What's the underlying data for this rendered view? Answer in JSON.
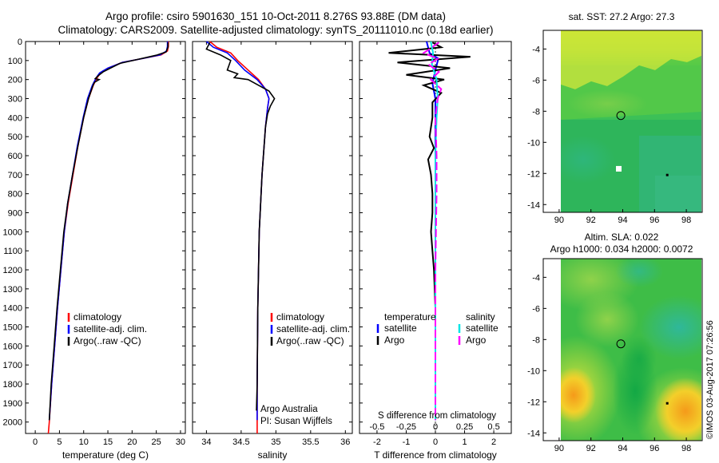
{
  "header": {
    "line1": "Argo profile: csiro 5901630_151 10-Oct-2011 8.276S 93.88E (DM data)",
    "line2": "Climatology: CARS2009. Satellite-adjusted climatology: synTS_20111010.nc (0.18d earlier)"
  },
  "stamp": "©IMOS 03-Aug-2017 07:26:56",
  "colors": {
    "clim": "#ff0000",
    "sat": "#0000ff",
    "argo": "#000000",
    "sal_sat": "#00e5e5",
    "sal_argo": "#ff00ff"
  },
  "chart_data": [
    {
      "type": "line",
      "name": "temperature-profile",
      "xlabel": "temperature (deg C)",
      "ylabel": "",
      "xlim": [
        -2,
        31
      ],
      "ylim": [
        2060,
        0
      ],
      "xticks": [
        0,
        5,
        10,
        15,
        20,
        25,
        30
      ],
      "yticks": [
        0,
        100,
        200,
        300,
        400,
        500,
        600,
        700,
        800,
        900,
        1000,
        1100,
        1200,
        1300,
        1400,
        1500,
        1600,
        1700,
        1800,
        1900,
        2000
      ],
      "legend": [
        "climatology",
        "satellite-adj. clim.",
        "Argo(..raw -QC)"
      ],
      "series": [
        {
          "name": "climatology",
          "points": [
            [
              27.5,
              0
            ],
            [
              27.5,
              25
            ],
            [
              27.3,
              50
            ],
            [
              26,
              70
            ],
            [
              22,
              90
            ],
            [
              18,
              110
            ],
            [
              15,
              140
            ],
            [
              13.5,
              165
            ],
            [
              12.8,
              190
            ],
            [
              12,
              230
            ],
            [
              11,
              300
            ],
            [
              10,
              400
            ],
            [
              8.8,
              550
            ],
            [
              7.8,
              700
            ],
            [
              6.8,
              850
            ],
            [
              6,
              1000
            ],
            [
              5.3,
              1200
            ],
            [
              4.6,
              1400
            ],
            [
              4,
              1600
            ],
            [
              3.4,
              1800
            ],
            [
              2.9,
              2000
            ],
            [
              2.7,
              2060
            ]
          ]
        },
        {
          "name": "satellite",
          "points": [
            [
              27.3,
              0
            ],
            [
              27.3,
              25
            ],
            [
              27.1,
              50
            ],
            [
              25.8,
              70
            ],
            [
              22,
              90
            ],
            [
              18,
              110
            ],
            [
              15,
              140
            ],
            [
              13.3,
              165
            ],
            [
              12.6,
              190
            ],
            [
              11.8,
              230
            ],
            [
              10.8,
              300
            ],
            [
              9.9,
              400
            ],
            [
              8.7,
              550
            ],
            [
              7.7,
              700
            ],
            [
              6.7,
              850
            ],
            [
              6,
              1000
            ],
            [
              5.3,
              1200
            ],
            [
              4.6,
              1400
            ],
            [
              4,
              1600
            ],
            [
              3.4,
              1800
            ],
            [
              2.9,
              1990
            ]
          ]
        },
        {
          "name": "argo",
          "points": [
            [
              27.4,
              5
            ],
            [
              27.4,
              30
            ],
            [
              27,
              55
            ],
            [
              25,
              72
            ],
            [
              21,
              95
            ],
            [
              17.5,
              115
            ],
            [
              15.5,
              140
            ],
            [
              14,
              160
            ],
            [
              13,
              180
            ],
            [
              12.4,
              195
            ],
            [
              13.2,
              200
            ],
            [
              12.2,
              215
            ],
            [
              11.8,
              240
            ],
            [
              11,
              300
            ],
            [
              10,
              400
            ],
            [
              8.8,
              550
            ],
            [
              7.7,
              700
            ],
            [
              6.7,
              850
            ],
            [
              5.9,
              1000
            ],
            [
              5.2,
              1200
            ],
            [
              4.5,
              1400
            ],
            [
              3.9,
              1600
            ],
            [
              3.3,
              1800
            ],
            [
              2.9,
              1990
            ]
          ]
        }
      ]
    },
    {
      "type": "line",
      "name": "salinity-profile",
      "xlabel": "salinity",
      "xlim": [
        33.8,
        36.1
      ],
      "ylim": [
        2060,
        0
      ],
      "xticks": [
        34,
        34.5,
        35,
        35.5,
        36
      ],
      "legend": [
        "climatology",
        "satellite-adj. clim.",
        "Argo(..raw -QC)"
      ],
      "annotation": [
        "Argo Australia",
        "PI: Susan Wijffels"
      ],
      "series": [
        {
          "name": "climatology",
          "points": [
            [
              34.05,
              0
            ],
            [
              34.15,
              30
            ],
            [
              34.35,
              60
            ],
            [
              34.45,
              100
            ],
            [
              34.6,
              150
            ],
            [
              34.75,
              200
            ],
            [
              34.85,
              250
            ],
            [
              34.9,
              300
            ],
            [
              34.88,
              350
            ],
            [
              34.85,
              450
            ],
            [
              34.8,
              700
            ],
            [
              34.76,
              1000
            ],
            [
              34.74,
              1400
            ],
            [
              34.73,
              1800
            ],
            [
              34.73,
              2060
            ]
          ]
        },
        {
          "name": "satellite",
          "points": [
            [
              34.0,
              0
            ],
            [
              34.1,
              30
            ],
            [
              34.3,
              60
            ],
            [
              34.42,
              100
            ],
            [
              34.55,
              150
            ],
            [
              34.73,
              200
            ],
            [
              34.85,
              250
            ],
            [
              34.9,
              300
            ],
            [
              34.88,
              350
            ],
            [
              34.85,
              450
            ],
            [
              34.8,
              700
            ],
            [
              34.76,
              1000
            ],
            [
              34.74,
              1400
            ],
            [
              34.73,
              1800
            ],
            [
              34.73,
              1990
            ]
          ]
        },
        {
          "name": "argo",
          "points": [
            [
              34.05,
              5
            ],
            [
              34.0,
              40
            ],
            [
              34.2,
              70
            ],
            [
              34.35,
              100
            ],
            [
              34.3,
              150
            ],
            [
              34.45,
              170
            ],
            [
              34.4,
              190
            ],
            [
              34.6,
              200
            ],
            [
              34.75,
              230
            ],
            [
              34.9,
              260
            ],
            [
              34.98,
              300
            ],
            [
              34.92,
              340
            ],
            [
              34.88,
              380
            ],
            [
              34.85,
              450
            ],
            [
              34.8,
              700
            ],
            [
              34.76,
              1000
            ],
            [
              34.74,
              1400
            ],
            [
              34.73,
              1800
            ],
            [
              34.72,
              1940
            ]
          ]
        }
      ]
    },
    {
      "type": "line",
      "name": "difference-profile",
      "xlabel": "T difference from climatology",
      "xlabel_top": "S difference from climatology",
      "xlim": [
        -2.6,
        2.6
      ],
      "ylim": [
        2060,
        0
      ],
      "xticks": [
        -2,
        -1,
        0,
        1,
        2
      ],
      "xticklabels": [
        "-2",
        "-1",
        "0",
        "1",
        "2"
      ],
      "s_ticks": [
        -0.5,
        -0.25,
        0,
        0.25,
        0.5
      ],
      "s_ticklabels": [
        "-0.5",
        "-0.25",
        "0",
        "0.25",
        "0.5"
      ],
      "legend_titles": [
        "temperature",
        "salinity"
      ],
      "legend": [
        "satellite",
        "Argo",
        "satellite",
        "Argo"
      ],
      "series": [
        {
          "name": "T satellite",
          "points": [
            [
              -0.3,
              0
            ],
            [
              -0.2,
              60
            ],
            [
              0.1,
              90
            ],
            [
              0,
              150
            ],
            [
              -0.1,
              220
            ],
            [
              0,
              300
            ],
            [
              0,
              600
            ],
            [
              0,
              1000
            ],
            [
              0,
              1500
            ],
            [
              0,
              1990
            ]
          ]
        },
        {
          "name": "T Argo",
          "points": [
            [
              -0.1,
              5
            ],
            [
              0.2,
              30
            ],
            [
              -1.6,
              60
            ],
            [
              1.2,
              80
            ],
            [
              -1.3,
              110
            ],
            [
              0.5,
              140
            ],
            [
              -1.0,
              175
            ],
            [
              0.3,
              200
            ],
            [
              -0.4,
              230
            ],
            [
              0.2,
              270
            ],
            [
              -0.1,
              320
            ],
            [
              -0.1,
              400
            ],
            [
              -0.2,
              500
            ],
            [
              -0.05,
              560
            ],
            [
              -0.25,
              620
            ],
            [
              -0.15,
              700
            ],
            [
              -0.1,
              800
            ],
            [
              -0.1,
              900
            ],
            [
              -0.15,
              1000
            ],
            [
              -0.1,
              1100
            ],
            [
              -0.05,
              1200
            ],
            [
              0,
              1400
            ],
            [
              0,
              1600
            ],
            [
              0,
              1800
            ],
            [
              0,
              1990
            ]
          ]
        },
        {
          "name": "S satellite",
          "points": [
            [
              -0.04,
              0
            ],
            [
              -0.02,
              60
            ],
            [
              -0.03,
              120
            ],
            [
              0.01,
              200
            ],
            [
              0.02,
              300
            ],
            [
              0.01,
              400
            ],
            [
              0,
              600
            ],
            [
              0,
              1000
            ],
            [
              0,
              1500
            ],
            [
              0,
              1990
            ]
          ]
        },
        {
          "name": "S Argo",
          "points": [
            [
              0.03,
              5
            ],
            [
              -0.05,
              40
            ],
            [
              -0.1,
              60
            ],
            [
              0.02,
              90
            ],
            [
              -0.06,
              120
            ],
            [
              0.03,
              160
            ],
            [
              -0.04,
              200
            ],
            [
              0.05,
              250
            ],
            [
              0.02,
              300
            ],
            [
              0,
              400
            ],
            [
              0.01,
              600
            ],
            [
              0.01,
              800
            ],
            [
              0.005,
              1000
            ],
            [
              0,
              1200
            ],
            [
              0,
              1500
            ],
            [
              0,
              1990
            ]
          ]
        }
      ]
    },
    {
      "type": "heatmap",
      "name": "sst-map",
      "title": "sat. SST: 27.2  Argo: 27.3",
      "xlim": [
        89,
        99
      ],
      "ylim": [
        -14.5,
        -2.8
      ],
      "xticks": [
        90,
        92,
        94,
        96,
        98
      ],
      "yticks": [
        -4,
        -6,
        -8,
        -10,
        -12,
        -14
      ],
      "points": [
        {
          "lon": 93.88,
          "lat": -8.276,
          "kind": "argo-circle"
        },
        {
          "lon": 93.75,
          "lat": -11.7,
          "kind": "white-square"
        },
        {
          "lon": 96.8,
          "lat": -12.1,
          "kind": "dot"
        }
      ]
    },
    {
      "type": "heatmap",
      "name": "sla-map",
      "title": "Altim. SLA: 0.022",
      "subtitle": "Argo h1000: 0.034 h2000: 0.0072",
      "xlim": [
        89,
        99
      ],
      "ylim": [
        -14.5,
        -2.8
      ],
      "xticks": [
        90,
        92,
        94,
        96,
        98
      ],
      "yticks": [
        -4,
        -6,
        -8,
        -10,
        -12,
        -14
      ],
      "points": [
        {
          "lon": 93.88,
          "lat": -8.276,
          "kind": "argo-circle"
        },
        {
          "lon": 96.8,
          "lat": -12.1,
          "kind": "dot"
        }
      ]
    }
  ]
}
